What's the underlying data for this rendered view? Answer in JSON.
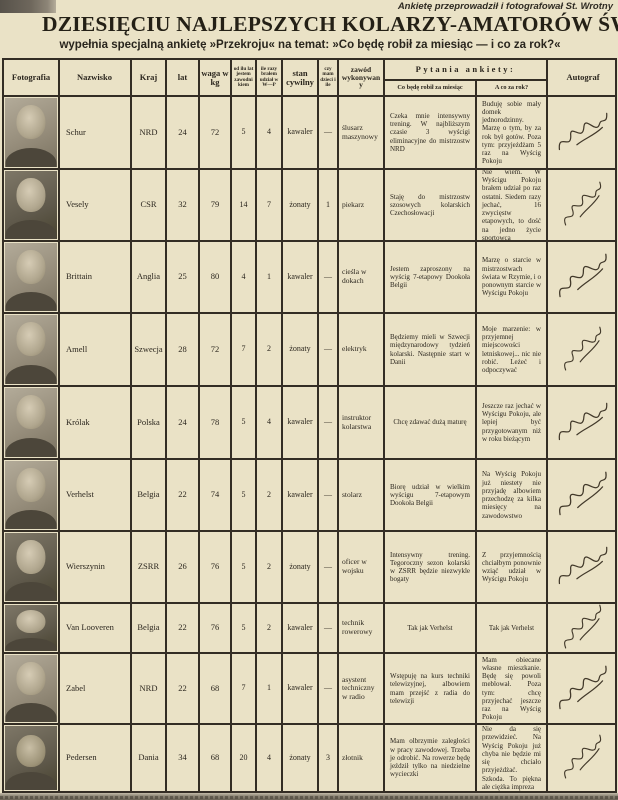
{
  "credit": "Ankietę przeprowadził i fotografował St. Wrotny",
  "title": "DZIESIĘCIU NAJLEPSZYCH KOLARZY-AMATORÓW ŚWIATA",
  "subtitle": "wypełnia specjalną ankietę »Przekroju« na temat: »Co będę robił za miesiąc — i co za rok?«",
  "colors": {
    "paper": "#eae2c6",
    "ink": "#2b261e",
    "table_line": "#332d24"
  },
  "table": {
    "headers": {
      "fotografia": "Fotografia",
      "nazwisko": "Nazwisko",
      "kraj": "Kraj",
      "lat": "lat",
      "waga": "waga w kg",
      "od_ilu_lat": "od ilu lat jestem zawodnikiem",
      "ile_razy": "ile razy brałem udział w W—P",
      "stan_cywilny": "stan cywilny",
      "czy_mam_dzieci": "czy mam dzieci i ile",
      "zawod": "zawód wykonywany",
      "pytania": "Pytania ankiety:",
      "pytanie1": "Co będę robił za miesiąc",
      "pytanie2": "A co za rok?",
      "autograf": "Autograf"
    },
    "rows": [
      {
        "name": "Schur",
        "country": "NRD",
        "age": "24",
        "weight": "72",
        "years": "5",
        "wp": "4",
        "marital": "kawaler",
        "children": "—",
        "job": "ślusarz maszynowy",
        "month": "Czeka mnie intensywny trening. W najbliższym czasie 3 wyścigi eliminacyjne do mistrzostw NRD",
        "year": "Buduję sobie mały domek jednorodzinny. Marzę o tym, by za rok był gotów. Poza tym: przyjeżdżam 5 raz na Wyścig Pokoju"
      },
      {
        "name": "Vesely",
        "country": "CSR",
        "age": "32",
        "weight": "79",
        "years": "14",
        "wp": "7",
        "marital": "żonaty",
        "children": "1",
        "job": "piekarz",
        "month": "Staję do mistrzostw szosowych kolarskich Czechosłowacji",
        "year": "Nie wiem. W Wyścigu Pokoju brałem udział po raz ostatni. Siedem razy jechać, 16 zwycięstw etapowych, to dość na jedno życie sportowca"
      },
      {
        "name": "Brittain",
        "country": "Anglia",
        "age": "25",
        "weight": "80",
        "years": "4",
        "wp": "1",
        "marital": "kawaler",
        "children": "—",
        "job": "cieśla w dokach",
        "month": "Jestem zaproszony na wyścig 7-etapowy Dookoła Belgii",
        "year": "Marzę o starcie w mistrzostwach świata w Rzymie, i o ponownym starcie w Wyścigu Pokoju"
      },
      {
        "name": "Amell",
        "country": "Szwecja",
        "age": "28",
        "weight": "72",
        "years": "7",
        "wp": "2",
        "marital": "żonaty",
        "children": "—",
        "job": "elektryk",
        "month": "Będziemy mieli w Szwecji międzynarodowy tydzień kolarski. Następnie start w Danii",
        "year": "Moje marzenie: w przyjemnej miejscowości letniskowej... nic nie robić. Leżeć i odpoczywać"
      },
      {
        "name": "Królak",
        "country": "Polska",
        "age": "24",
        "weight": "78",
        "years": "5",
        "wp": "4",
        "marital": "kawaler",
        "children": "—",
        "job": "instruktor kolarstwa",
        "month": "Chcę zdawać dużą maturę",
        "year": "Jeszcze raz jechać w Wyścigu Pokoju, ale lepiej być przygotowanym niż w roku bieżącym"
      },
      {
        "name": "Verhelst",
        "country": "Belgia",
        "age": "22",
        "weight": "74",
        "years": "5",
        "wp": "2",
        "marital": "kawaler",
        "children": "—",
        "job": "stolarz",
        "month": "Biorę udział w wielkim wyścigu 7-etapowym Dookoła Belgii",
        "year": "Na Wyścig Pokoju już niestety nie przyjadę albowiem przechodzę za kilka miesięcy na zawodowstwo"
      },
      {
        "name": "Wierszynin",
        "country": "ZSRR",
        "age": "26",
        "weight": "76",
        "years": "5",
        "wp": "2",
        "marital": "żonaty",
        "children": "—",
        "job": "oficer w wojsku",
        "month": "Intensywny trening. Tegoroczny sezon kolarski w ZSRR będzie niezwykle bogaty",
        "year": "Z przyjemnością chciałbym ponownie wziąć udział w Wyścigu Pokoju"
      },
      {
        "name": "Van Looveren",
        "country": "Belgia",
        "age": "22",
        "weight": "76",
        "years": "5",
        "wp": "2",
        "marital": "kawaler",
        "children": "—",
        "job": "technik rowerowy",
        "month": "Tak jak Verhelst",
        "year": "Tak jak Verhelst"
      },
      {
        "name": "Zabel",
        "country": "NRD",
        "age": "22",
        "weight": "68",
        "years": "7",
        "wp": "1",
        "marital": "kawaler",
        "children": "—",
        "job": "asystent techniczny w radio",
        "month": "Wstępuję na kurs techniki telewizyjnej, albowiem mam przejść z radia do telewizji",
        "year": "Mam obiecane własne mieszkanie. Będę się powoli meblował. Poza tym: chcę przyjechać jeszcze raz na Wyścig Pokoju"
      },
      {
        "name": "Pedersen",
        "country": "Dania",
        "age": "34",
        "weight": "68",
        "years": "20",
        "wp": "4",
        "marital": "żonaty",
        "children": "3",
        "job": "złotnik",
        "month": "Mam olbrzymie zaległości w pracy zawodowej. Trzeba je odrobić. Na rowerze będę jeździł tylko na niedzielne wycieczki",
        "year": "Nie da się przewidzieć. Na Wyścig Pokoju już chyba nie będzie mi się chciało przyjeżdżać. Szkoda. To piękna ale ciężka impreza"
      }
    ]
  }
}
